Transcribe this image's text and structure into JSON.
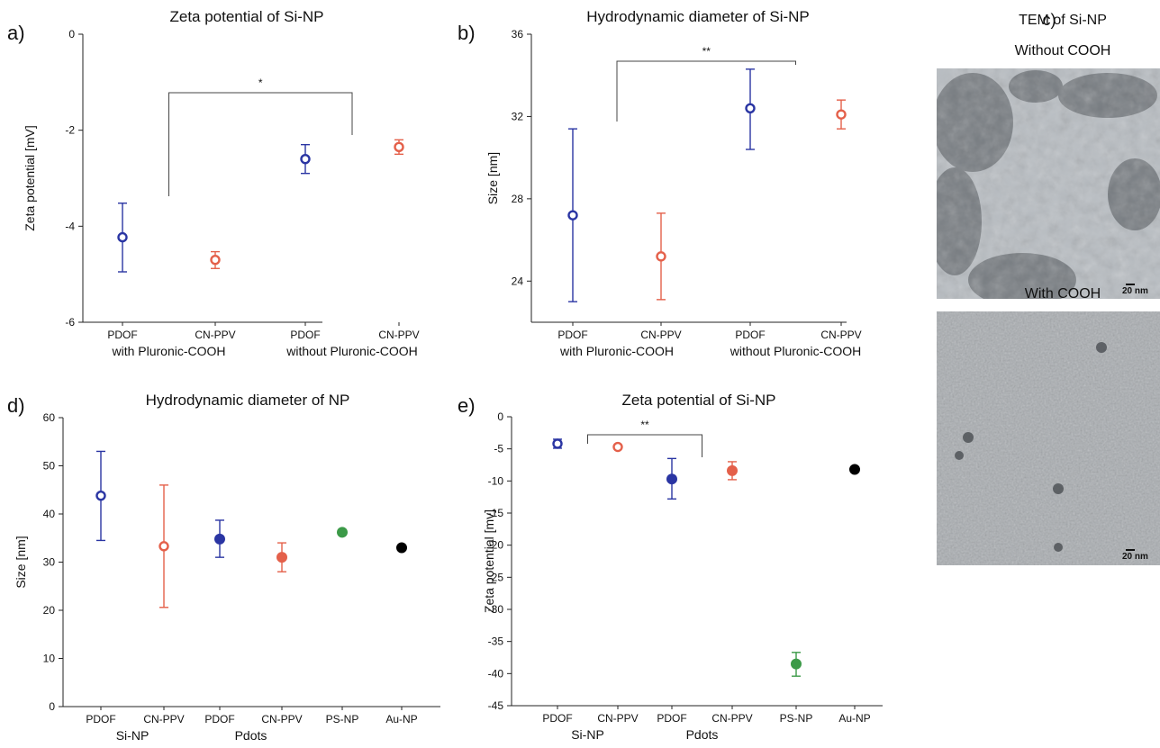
{
  "chart_data": [
    {
      "id": "a",
      "panel_label": "a)",
      "type": "scatter",
      "title": "Zeta potential of Si-NP",
      "ylabel": "Zeta potential [mV]",
      "xlabel": "",
      "ylim": [
        -6,
        0
      ],
      "yticks": [
        0,
        -2,
        -4,
        -6
      ],
      "categories": [
        "PDOF",
        "CN-PPV",
        "PDOF",
        "CN-PPV"
      ],
      "groups": [
        "with Pluronic-COOH",
        "without Pluronic-COOH"
      ],
      "points": [
        {
          "x": 0,
          "y": -4.23,
          "err_low": -4.95,
          "err_high": -3.52,
          "color": "#2a35a3",
          "filled": false
        },
        {
          "x": 1,
          "y": -4.7,
          "err_low": -4.88,
          "err_high": -4.53,
          "color": "#e4604a",
          "filled": false
        },
        {
          "x": 2,
          "y": -2.6,
          "err_low": -2.9,
          "err_high": -2.3,
          "color": "#2a35a3",
          "filled": false
        },
        {
          "x": 3,
          "y": -2.35,
          "err_low": -2.5,
          "err_high": -2.2,
          "color": "#e4604a",
          "filled": false
        }
      ],
      "significance": {
        "label": "*",
        "from": 0,
        "to": 2
      }
    },
    {
      "id": "b",
      "panel_label": "b)",
      "type": "scatter",
      "title": "Hydrodynamic diameter of Si-NP",
      "ylabel": "Size [nm]",
      "xlabel": "",
      "ylim": [
        22,
        36
      ],
      "yticks": [
        24,
        28,
        32,
        36
      ],
      "categories": [
        "PDOF",
        "CN-PPV",
        "PDOF",
        "CN-PPV"
      ],
      "groups": [
        "with Pluronic-COOH",
        "without Pluronic-COOH"
      ],
      "points": [
        {
          "x": 0,
          "y": 27.2,
          "err_low": 23.0,
          "err_high": 31.4,
          "color": "#2a35a3",
          "filled": false
        },
        {
          "x": 1,
          "y": 25.2,
          "err_low": 23.1,
          "err_high": 27.3,
          "color": "#e4604a",
          "filled": false
        },
        {
          "x": 2,
          "y": 32.4,
          "err_low": 30.4,
          "err_high": 34.3,
          "color": "#2a35a3",
          "filled": false
        },
        {
          "x": 3,
          "y": 32.1,
          "err_low": 31.4,
          "err_high": 32.8,
          "color": "#e4604a",
          "filled": false
        }
      ],
      "significance": {
        "label": "**",
        "from": 0,
        "to": 2
      }
    },
    {
      "id": "d",
      "panel_label": "d)",
      "type": "scatter",
      "title": "Hydrodynamic diameter of NP",
      "ylabel": "Size [nm]",
      "xlabel": "",
      "ylim": [
        0,
        60
      ],
      "yticks": [
        0,
        10,
        20,
        30,
        40,
        50,
        60
      ],
      "categories": [
        "PDOF",
        "CN-PPV",
        "PDOF",
        "CN-PPV",
        "PS-NP",
        "Au-NP"
      ],
      "groups": [
        {
          "label": "Si-NP",
          "center": 0.5
        },
        {
          "label": "Pdots",
          "center": 2.5
        }
      ],
      "points": [
        {
          "x": 0,
          "y": 43.8,
          "err_low": 34.5,
          "err_high": 53.0,
          "color": "#2a35a3",
          "filled": false
        },
        {
          "x": 1,
          "y": 33.3,
          "err_low": 20.6,
          "err_high": 46.0,
          "color": "#e4604a",
          "filled": false
        },
        {
          "x": 2,
          "y": 34.8,
          "err_low": 31.0,
          "err_high": 38.7,
          "color": "#2a35a3",
          "filled": true
        },
        {
          "x": 3,
          "y": 31.0,
          "err_low": 28.0,
          "err_high": 34.0,
          "color": "#e4604a",
          "filled": true
        },
        {
          "x": 4,
          "y": 36.2,
          "err_low": 35.7,
          "err_high": 36.6,
          "color": "#3c9a48",
          "filled": true
        },
        {
          "x": 5,
          "y": 33.0,
          "err_low": 33.0,
          "err_high": 33.0,
          "color": "#000000",
          "filled": true
        }
      ]
    },
    {
      "id": "e",
      "panel_label": "e)",
      "type": "scatter",
      "title": "Zeta potential of Si-NP",
      "ylabel": "Zeta potential [mv]",
      "xlabel": "",
      "ylim": [
        -45,
        0
      ],
      "yticks": [
        0,
        -5,
        -10,
        -15,
        -20,
        -25,
        -30,
        -35,
        -40,
        -45
      ],
      "categories": [
        "PDOF",
        "CN-PPV",
        "PDOF",
        "CN-PPV",
        "PS-NP",
        "Au-NP"
      ],
      "groups": [
        {
          "label": "Si-NP",
          "center": 0.5
        },
        {
          "label": "Pdots",
          "center": 2.5
        }
      ],
      "points": [
        {
          "x": 0,
          "y": -4.2,
          "err_low": -4.9,
          "err_high": -3.5,
          "color": "#2a35a3",
          "filled": false
        },
        {
          "x": 1,
          "y": -4.7,
          "err_low": -4.9,
          "err_high": -4.5,
          "color": "#e4604a",
          "filled": false
        },
        {
          "x": 2,
          "y": -9.7,
          "err_low": -12.8,
          "err_high": -6.5,
          "color": "#2a35a3",
          "filled": true
        },
        {
          "x": 3,
          "y": -8.4,
          "err_low": -9.8,
          "err_high": -7.0,
          "color": "#e4604a",
          "filled": true
        },
        {
          "x": 4,
          "y": -38.5,
          "err_low": -40.4,
          "err_high": -36.7,
          "color": "#3c9a48",
          "filled": true
        },
        {
          "x": 5,
          "y": -8.2,
          "err_low": -8.2,
          "err_high": -8.2,
          "color": "#000000",
          "filled": true
        }
      ],
      "significance": {
        "label": "**",
        "from": 0,
        "to": 2
      }
    }
  ],
  "tem_panel": {
    "panel_label": "c)",
    "title": "TEM of Si-NP",
    "top_label": "Without COOH",
    "bottom_label": "With COOH",
    "scalebar_top": "20 nm",
    "scalebar_bottom": "20 nm"
  }
}
